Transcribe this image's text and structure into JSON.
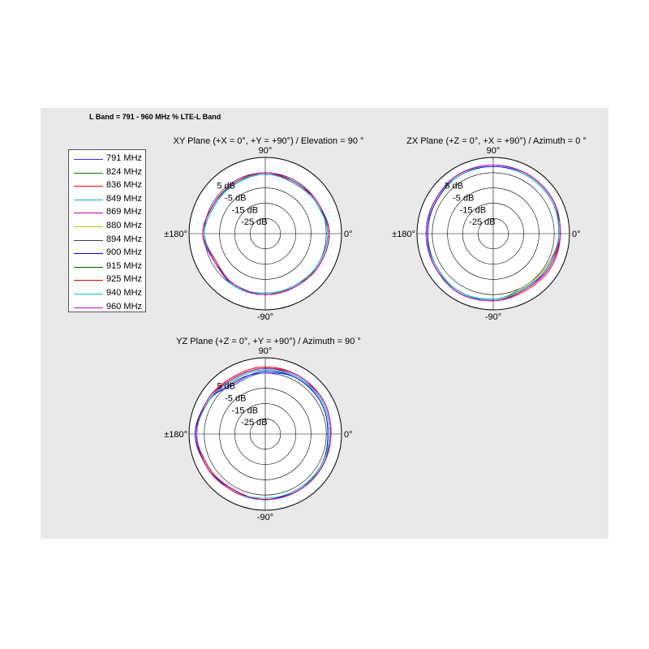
{
  "title": "L Band = 791 - 960 MHz % LTE-L Band",
  "legend": [
    {
      "label": "791 MHz",
      "color": "#3333ff"
    },
    {
      "label": "824 MHz",
      "color": "#007f00"
    },
    {
      "label": "836 MHz",
      "color": "#ff0000"
    },
    {
      "label": "849 MHz",
      "color": "#00bfbf"
    },
    {
      "label": "869 MHz",
      "color": "#bf00bf"
    },
    {
      "label": "880 MHz",
      "color": "#bfbf00"
    },
    {
      "label": "894 MHz",
      "color": "#3f3f3f"
    },
    {
      "label": "900 MHz",
      "color": "#0000ff"
    },
    {
      "label": "915 MHz",
      "color": "#006400"
    },
    {
      "label": "925 MHz",
      "color": "#ee0000"
    },
    {
      "label": "940 MHz",
      "color": "#00cccc"
    },
    {
      "label": "960 MHz",
      "color": "#cc00cc"
    }
  ],
  "chart_data": [
    {
      "type": "polar",
      "title": "XY Plane (+X = 0°, +Y = +90°) / Elevation = 90 °",
      "angle_labels": {
        "right": "0°",
        "top": "90°",
        "left": "±180°",
        "bottom": "-90°"
      },
      "r_ticks": [
        "5 dB",
        "-5 dB",
        "-15 dB",
        "-25 dB"
      ],
      "r_tick_values": [
        5,
        -5,
        -15,
        -25
      ],
      "rlim": [
        -35,
        15
      ],
      "angles_deg": [
        0,
        30,
        60,
        90,
        120,
        150,
        180,
        210,
        240,
        270,
        300,
        330
      ],
      "series": [
        {
          "values": [
            6,
            5,
            3,
            4,
            3,
            4,
            6,
            2,
            5,
            5,
            5,
            5
          ]
        },
        {
          "values": [
            7,
            4,
            3,
            5,
            4,
            3,
            5,
            3,
            4,
            5,
            4,
            6
          ]
        },
        {
          "values": [
            7,
            5,
            4,
            5,
            3,
            4,
            6,
            3,
            4,
            5,
            5,
            6
          ]
        },
        {
          "values": [
            6,
            4,
            3,
            4,
            4,
            3,
            5,
            2,
            5,
            4,
            5,
            5
          ]
        },
        {
          "values": [
            7,
            5,
            4,
            4,
            4,
            4,
            6,
            3,
            4,
            5,
            4,
            6
          ]
        },
        {
          "values": [
            6,
            4,
            3,
            5,
            3,
            3,
            5,
            2,
            5,
            4,
            5,
            5
          ]
        },
        {
          "values": [
            7,
            5,
            4,
            5,
            4,
            4,
            6,
            3,
            4,
            5,
            5,
            6
          ]
        },
        {
          "values": [
            6,
            4,
            3,
            4,
            3,
            3,
            5,
            2,
            5,
            4,
            4,
            5
          ]
        },
        {
          "values": [
            7,
            5,
            4,
            5,
            4,
            4,
            6,
            3,
            4,
            5,
            5,
            6
          ]
        },
        {
          "values": [
            7,
            5,
            3,
            5,
            4,
            4,
            6,
            2,
            4,
            5,
            5,
            6
          ]
        },
        {
          "values": [
            6,
            4,
            3,
            4,
            3,
            3,
            5,
            3,
            5,
            4,
            4,
            5
          ]
        },
        {
          "values": [
            7,
            5,
            4,
            5,
            4,
            4,
            6,
            3,
            4,
            5,
            5,
            6
          ]
        }
      ]
    },
    {
      "type": "polar",
      "title": "ZX Plane (+Z = 0°, +X = +90°) / Azimuth = 0 °",
      "angle_labels": {
        "right": "0°",
        "top": "90°",
        "left": "±180°",
        "bottom": "-90°"
      },
      "r_ticks": [
        "5 dB",
        "-5 dB",
        "-15 dB",
        "-25 dB"
      ],
      "r_tick_values": [
        5,
        -5,
        -15,
        -25
      ],
      "rlim": [
        -35,
        15
      ],
      "angles_deg": [
        0,
        30,
        60,
        90,
        120,
        150,
        180,
        210,
        240,
        270,
        300,
        330
      ],
      "series": [
        {
          "values": [
            8,
            9,
            9,
            10,
            9,
            8,
            8,
            8,
            9,
            8,
            5,
            6
          ]
        },
        {
          "values": [
            8,
            10,
            10,
            10,
            10,
            9,
            9,
            9,
            9,
            8,
            6,
            7
          ]
        },
        {
          "values": [
            9,
            10,
            10,
            10,
            10,
            9,
            9,
            8,
            9,
            8,
            5,
            6
          ]
        },
        {
          "values": [
            8,
            9,
            9,
            10,
            9,
            9,
            8,
            9,
            9,
            9,
            6,
            7
          ]
        },
        {
          "values": [
            9,
            10,
            10,
            10,
            10,
            9,
            9,
            9,
            10,
            9,
            7,
            7
          ]
        },
        {
          "values": [
            8,
            9,
            9,
            10,
            9,
            8,
            8,
            8,
            9,
            8,
            5,
            6
          ]
        },
        {
          "values": [
            9,
            10,
            10,
            10,
            10,
            9,
            9,
            9,
            10,
            9,
            7,
            8
          ]
        },
        {
          "values": [
            8,
            9,
            9,
            9,
            9,
            8,
            8,
            8,
            9,
            8,
            6,
            7
          ]
        },
        {
          "values": [
            9,
            10,
            10,
            10,
            10,
            9,
            9,
            9,
            10,
            9,
            7,
            8
          ]
        },
        {
          "values": [
            9,
            10,
            10,
            10,
            10,
            9,
            9,
            9,
            10,
            9,
            8,
            9
          ]
        },
        {
          "values": [
            8,
            9,
            9,
            10,
            9,
            9,
            9,
            8,
            9,
            8,
            6,
            7
          ]
        },
        {
          "values": [
            9,
            10,
            10,
            10,
            10,
            9,
            9,
            9,
            10,
            9,
            7,
            8
          ]
        }
      ]
    },
    {
      "type": "polar",
      "title": "YZ Plane (+Z = 0°, +Y = +90°) / Azimuth = 90 °",
      "angle_labels": {
        "right": "0°",
        "top": "90°",
        "left": "±180°",
        "bottom": "-90°"
      },
      "r_ticks": [
        "5 dB",
        "-5 dB",
        "-15 dB",
        "-25 dB"
      ],
      "r_tick_values": [
        5,
        -5,
        -15,
        -25
      ],
      "rlim": [
        -35,
        15
      ],
      "angles_deg": [
        0,
        30,
        60,
        90,
        120,
        150,
        180,
        210,
        240,
        270,
        300,
        330
      ],
      "series": [
        {
          "values": [
            6,
            7,
            7,
            5,
            3,
            8,
            11,
            9,
            7,
            8,
            7,
            7
          ]
        },
        {
          "values": [
            7,
            8,
            8,
            7,
            6,
            8,
            10,
            9,
            8,
            8,
            8,
            8
          ]
        },
        {
          "values": [
            8,
            9,
            8,
            8,
            7,
            8,
            10,
            8,
            7,
            8,
            7,
            8
          ]
        },
        {
          "values": [
            7,
            8,
            7,
            7,
            6,
            8,
            11,
            9,
            8,
            7,
            8,
            7
          ]
        },
        {
          "values": [
            8,
            9,
            9,
            9,
            8,
            9,
            10,
            9,
            7,
            8,
            8,
            8
          ]
        },
        {
          "values": [
            7,
            8,
            8,
            7,
            6,
            8,
            10,
            8,
            8,
            7,
            7,
            7
          ]
        },
        {
          "values": [
            8,
            9,
            9,
            8,
            7,
            9,
            11,
            9,
            8,
            8,
            8,
            8
          ]
        },
        {
          "values": [
            6,
            7,
            7,
            6,
            4,
            8,
            11,
            9,
            7,
            8,
            7,
            7
          ]
        },
        {
          "values": [
            8,
            9,
            9,
            8,
            7,
            9,
            10,
            9,
            8,
            8,
            8,
            8
          ]
        },
        {
          "values": [
            8,
            9,
            9,
            9,
            8,
            9,
            10,
            8,
            7,
            8,
            8,
            8
          ]
        },
        {
          "values": [
            7,
            8,
            8,
            7,
            6,
            8,
            10,
            9,
            8,
            7,
            7,
            7
          ]
        },
        {
          "values": [
            8,
            9,
            9,
            8,
            7,
            9,
            10,
            9,
            8,
            8,
            8,
            8
          ]
        }
      ]
    }
  ]
}
